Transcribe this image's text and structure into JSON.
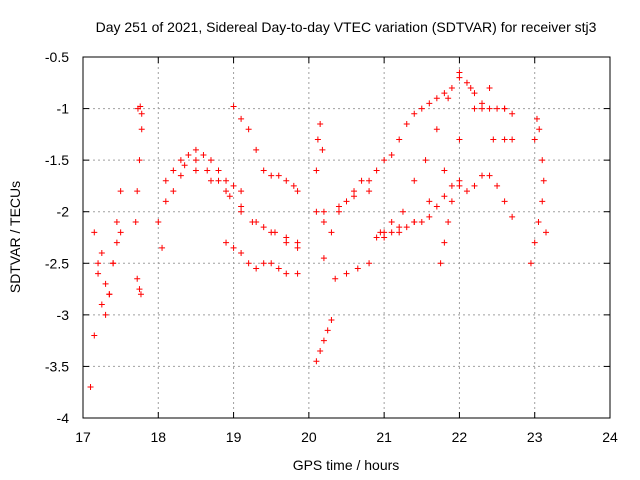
{
  "chart_data": {
    "type": "scatter",
    "title": "Day 251 of 2021, Sidereal Day-to-day VTEC variation (SDTVAR) for receiver stj3",
    "xlabel": "GPS time / hours",
    "ylabel": "SDTVAR / TECUs",
    "xlim": [
      17,
      24
    ],
    "ylim": [
      -4,
      -0.5
    ],
    "xticks": [
      "17",
      "18",
      "19",
      "20",
      "21",
      "22",
      "23",
      "24"
    ],
    "yticks": [
      "-4",
      "-3.5",
      "-3",
      "-2.5",
      "-2",
      "-1.5",
      "-1",
      "-0.5"
    ],
    "grid": true,
    "marker": "+",
    "color": "#ff0000",
    "series": [
      {
        "name": "arc-early-low",
        "x": [
          17.1,
          17.15,
          17.2,
          17.25,
          17.3,
          17.35,
          17.4,
          17.45,
          17.5
        ],
        "y": [
          -3.7,
          -3.2,
          -2.6,
          -2.4,
          -2.7,
          -2.8,
          -2.5,
          -2.3,
          -2.2
        ]
      },
      {
        "name": "arc-early-mid",
        "x": [
          17.15,
          17.2,
          17.25,
          17.3,
          17.35,
          17.4,
          17.45,
          17.5
        ],
        "y": [
          -2.2,
          -2.5,
          -2.9,
          -3.0,
          -2.8,
          -2.5,
          -2.1,
          -1.8
        ]
      },
      {
        "name": "arc-1745",
        "x": [
          17.7,
          17.72,
          17.75,
          17.78
        ],
        "y": [
          -2.1,
          -1.8,
          -1.5,
          -1.2
        ]
      },
      {
        "name": "arc-1740-low",
        "x": [
          17.72,
          17.75,
          17.77
        ],
        "y": [
          -2.65,
          -2.75,
          -2.8
        ]
      },
      {
        "name": "arc-1745-top",
        "x": [
          17.73,
          17.76,
          17.78
        ],
        "y": [
          -1.0,
          -0.98,
          -1.05
        ]
      },
      {
        "name": "arc-18-a",
        "x": [
          18.0,
          18.1,
          18.2,
          18.3,
          18.4,
          18.5,
          18.6,
          18.7,
          18.8,
          18.9,
          19.0,
          19.1
        ],
        "y": [
          -2.1,
          -1.7,
          -1.6,
          -1.5,
          -1.45,
          -1.4,
          -1.45,
          -1.5,
          -1.6,
          -1.7,
          -1.75,
          -1.8
        ]
      },
      {
        "name": "arc-18-b",
        "x": [
          18.05,
          18.2,
          18.35,
          18.5,
          18.65,
          18.8,
          18.95,
          19.1,
          19.25,
          19.4,
          19.55,
          19.7,
          19.85
        ],
        "y": [
          -2.35,
          -1.8,
          -1.55,
          -1.5,
          -1.6,
          -1.7,
          -1.85,
          -2.0,
          -2.1,
          -2.15,
          -2.2,
          -2.25,
          -2.3
        ]
      },
      {
        "name": "arc-18-c",
        "x": [
          18.1,
          18.3,
          18.5,
          18.7,
          18.9,
          19.1,
          19.3,
          19.5,
          19.7,
          19.85
        ],
        "y": [
          -1.9,
          -1.65,
          -1.6,
          -1.7,
          -1.8,
          -1.95,
          -2.1,
          -2.2,
          -2.3,
          -2.35
        ]
      },
      {
        "name": "arc-19-high",
        "x": [
          19.0,
          19.1,
          19.2,
          19.3,
          19.4,
          19.5,
          19.6,
          19.7,
          19.8,
          19.85
        ],
        "y": [
          -0.98,
          -1.1,
          -1.2,
          -1.4,
          -1.6,
          -1.65,
          -1.65,
          -1.7,
          -1.75,
          -1.8
        ]
      },
      {
        "name": "arc-19-low",
        "x": [
          18.9,
          19.0,
          19.1,
          19.2,
          19.3,
          19.4,
          19.5,
          19.6,
          19.7,
          19.85
        ],
        "y": [
          -2.3,
          -2.35,
          -2.4,
          -2.5,
          -2.55,
          -2.5,
          -2.5,
          -2.55,
          -2.6,
          -2.6
        ]
      },
      {
        "name": "arc-20-dip",
        "x": [
          20.1,
          20.15,
          20.2,
          20.25,
          20.3
        ],
        "y": [
          -3.45,
          -3.35,
          -3.25,
          -3.15,
          -3.05
        ]
      },
      {
        "name": "arc-20-spike",
        "x": [
          20.1,
          20.12,
          20.15,
          20.18
        ],
        "y": [
          -1.6,
          -1.3,
          -1.15,
          -1.4
        ]
      },
      {
        "name": "arc-20-main",
        "x": [
          20.1,
          20.2,
          20.3,
          20.4,
          20.5,
          20.6,
          20.7,
          20.8,
          20.9,
          21.0,
          21.1,
          21.2,
          21.3,
          21.4,
          21.5,
          21.6,
          21.7,
          21.8,
          21.9,
          22.0,
          22.1,
          22.2,
          22.3,
          22.4,
          22.5,
          22.6,
          22.7
        ],
        "y": [
          -2.0,
          -2.1,
          -2.2,
          -2.0,
          -1.9,
          -1.8,
          -1.7,
          -1.7,
          -1.6,
          -1.5,
          -1.45,
          -1.3,
          -1.15,
          -1.05,
          -1.0,
          -0.95,
          -0.9,
          -0.85,
          -0.8,
          -0.7,
          -0.75,
          -0.85,
          -0.95,
          -1.0,
          -1.0,
          -1.0,
          -1.05
        ]
      },
      {
        "name": "arc-20-second",
        "x": [
          20.2,
          20.35,
          20.5,
          20.65,
          20.8,
          20.95,
          21.1,
          21.25,
          21.4,
          21.55,
          21.7,
          21.85,
          22.0,
          22.15,
          22.3,
          22.45,
          22.6
        ],
        "y": [
          -2.45,
          -2.65,
          -2.6,
          -2.55,
          -2.5,
          -2.2,
          -2.1,
          -2.0,
          -1.7,
          -1.5,
          -1.2,
          -0.9,
          -0.65,
          -0.8,
          -1.0,
          -1.3,
          -1.3
        ]
      },
      {
        "name": "arc-20-third",
        "x": [
          20.2,
          20.4,
          20.6,
          20.8,
          21.0,
          21.2,
          21.4,
          21.6,
          21.8,
          22.0,
          22.2,
          22.4,
          22.6,
          22.7
        ],
        "y": [
          -2.0,
          -1.95,
          -1.85,
          -1.8,
          -2.2,
          -2.15,
          -2.1,
          -1.9,
          -1.6,
          -1.3,
          -1.0,
          -0.8,
          -1.0,
          -1.3
        ]
      },
      {
        "name": "arc-21-low",
        "x": [
          20.9,
          21.0,
          21.1,
          21.2,
          21.3,
          21.4,
          21.5,
          21.6,
          21.7,
          21.8,
          21.9,
          22.0,
          22.1,
          22.2,
          22.3,
          22.4,
          22.5,
          22.6,
          22.7
        ],
        "y": [
          -2.25,
          -2.25,
          -2.2,
          -2.2,
          -2.15,
          -2.1,
          -2.1,
          -2.05,
          -1.95,
          -1.85,
          -1.75,
          -1.75,
          -1.8,
          -1.75,
          -1.65,
          -1.65,
          -1.75,
          -1.9,
          -2.05
        ]
      },
      {
        "name": "arc-2175",
        "x": [
          21.75,
          21.8,
          21.85,
          21.9,
          22.0
        ],
        "y": [
          -2.5,
          -2.3,
          -2.1,
          -1.9,
          -1.7
        ]
      },
      {
        "name": "arc-23",
        "x": [
          22.95,
          23.0,
          23.05,
          23.1,
          23.15
        ],
        "y": [
          -2.5,
          -2.3,
          -2.1,
          -1.9,
          -2.2
        ]
      },
      {
        "name": "arc-23-top",
        "x": [
          23.0,
          23.03,
          23.06,
          23.1,
          23.12
        ],
        "y": [
          -1.3,
          -1.1,
          -1.2,
          -1.5,
          -1.7
        ]
      }
    ]
  }
}
